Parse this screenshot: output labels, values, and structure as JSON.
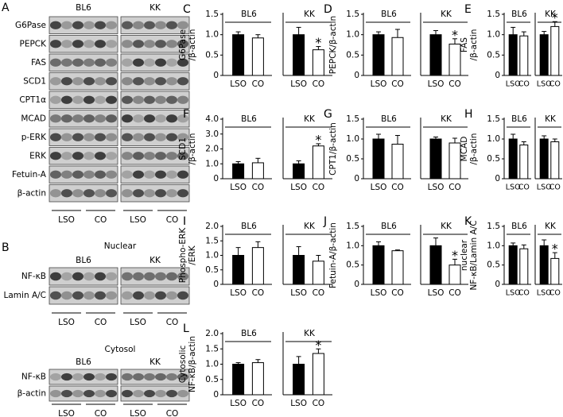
{
  "blots": {
    "panel_a": {
      "letter": "A",
      "groups": [
        "BL6",
        "KK"
      ],
      "rows": [
        "G6Pase",
        "PEPCK",
        "FAS",
        "SCD1",
        "CPT1α",
        "MCAD",
        "p-ERK",
        "ERK",
        "Fetuin-A",
        "β-actin"
      ],
      "lanes": [
        "LSO",
        "CO",
        "LSO",
        "CO"
      ]
    },
    "panel_b": {
      "letter": "B",
      "sections": [
        {
          "title": "Nuclear",
          "groups": [
            "BL6",
            "KK"
          ],
          "rows": [
            "NF-κB",
            "Lamin A/C"
          ],
          "lanes": [
            "LSO",
            "CO",
            "LSO",
            "CO"
          ]
        },
        {
          "title": "Cytosol",
          "groups": [
            "BL6",
            "KK"
          ],
          "rows": [
            "NF-κB",
            "β-actin"
          ],
          "lanes": [
            "LSO",
            "CO",
            "LSO",
            "CO"
          ]
        }
      ]
    }
  },
  "chart_data": [
    {
      "type": "bar",
      "panel": "C",
      "ylabel": [
        "G6Pase",
        "/β-actin"
      ],
      "groups": [
        "BL6",
        "KK"
      ],
      "categories": [
        "LSO",
        "CO",
        "LSO",
        "CO"
      ],
      "values": [
        1.0,
        0.92,
        1.0,
        0.63
      ],
      "errors": [
        0.07,
        0.08,
        0.18,
        0.08
      ],
      "colors": [
        "#000000",
        "#ffffff",
        "#000000",
        "#ffffff"
      ],
      "annotations": [
        {
          "index": 3,
          "text": "*"
        }
      ],
      "ylim": [
        0,
        1.5
      ],
      "yticks": [
        0,
        0.5,
        {
          "value": 1,
          "label": "1.0"
        },
        1.5
      ]
    },
    {
      "type": "bar",
      "panel": "D",
      "ylabel": [
        "PEPCK/β-actin"
      ],
      "groups": [
        "BL6",
        "KK"
      ],
      "categories": [
        "LSO",
        "CO",
        "LSO",
        "CO"
      ],
      "values": [
        1.0,
        0.93,
        1.0,
        0.77
      ],
      "errors": [
        0.07,
        0.2,
        0.1,
        0.13
      ],
      "colors": [
        "#000000",
        "#ffffff",
        "#000000",
        "#ffffff"
      ],
      "annotations": [
        {
          "index": 3,
          "text": "*"
        }
      ],
      "ylim": [
        0,
        1.5
      ],
      "yticks": [
        0,
        0.5,
        {
          "value": 1,
          "label": "1.0"
        },
        1.5
      ]
    },
    {
      "type": "bar",
      "panel": "E",
      "ylabel": [
        "FAS",
        "/β-actin"
      ],
      "groups": [
        "BL6",
        "KK"
      ],
      "categories": [
        "LSO",
        "CO",
        "LSO",
        "CO"
      ],
      "values": [
        1.0,
        0.97,
        1.0,
        1.2
      ],
      "errors": [
        0.18,
        0.1,
        0.08,
        0.12
      ],
      "colors": [
        "#000000",
        "#ffffff",
        "#000000",
        "#ffffff"
      ],
      "annotations": [
        {
          "index": 3,
          "text": "*"
        }
      ],
      "ylim": [
        0,
        1.5
      ],
      "yticks": [
        0,
        0.5,
        {
          "value": 1,
          "label": "1.0"
        },
        1.5
      ]
    },
    {
      "type": "bar",
      "panel": "F",
      "ylabel": [
        "SCD1",
        "/β-actin"
      ],
      "groups": [
        "BL6",
        "KK"
      ],
      "categories": [
        "LSO",
        "CO",
        "LSO",
        "CO"
      ],
      "values": [
        1.0,
        1.07,
        1.0,
        2.2
      ],
      "errors": [
        0.15,
        0.3,
        0.2,
        0.15
      ],
      "colors": [
        "#000000",
        "#ffffff",
        "#000000",
        "#ffffff"
      ],
      "annotations": [
        {
          "index": 3,
          "text": "*"
        }
      ],
      "ylim": [
        0,
        4
      ],
      "yticks": [
        0,
        {
          "value": 1,
          "label": "1.0"
        },
        {
          "value": 2,
          "label": "2.0"
        },
        {
          "value": 3,
          "label": "3.0"
        },
        {
          "value": 4,
          "label": "4.0"
        }
      ]
    },
    {
      "type": "bar",
      "panel": "G",
      "ylabel": [
        "CPT1/β-actin"
      ],
      "groups": [
        "BL6",
        "KK"
      ],
      "categories": [
        "LSO",
        "CO",
        "LSO",
        "CO"
      ],
      "values": [
        1.0,
        0.87,
        1.0,
        0.9
      ],
      "errors": [
        0.12,
        0.22,
        0.05,
        0.12
      ],
      "colors": [
        "#000000",
        "#ffffff",
        "#000000",
        "#ffffff"
      ],
      "annotations": [],
      "ylim": [
        0,
        1.5
      ],
      "yticks": [
        0,
        0.5,
        {
          "value": 1,
          "label": "1.0"
        },
        1.5
      ]
    },
    {
      "type": "bar",
      "panel": "H",
      "ylabel": [
        "MCAD",
        "/β-actin"
      ],
      "groups": [
        "BL6",
        "KK"
      ],
      "categories": [
        "LSO",
        "CO",
        "LSO",
        "CO"
      ],
      "values": [
        1.0,
        0.85,
        1.0,
        0.93
      ],
      "errors": [
        0.12,
        0.08,
        0.08,
        0.07
      ],
      "colors": [
        "#000000",
        "#ffffff",
        "#000000",
        "#ffffff"
      ],
      "annotations": [],
      "ylim": [
        0,
        1.5
      ],
      "yticks": [
        0,
        0.5,
        {
          "value": 1,
          "label": "1.0"
        },
        1.5
      ]
    },
    {
      "type": "bar",
      "panel": "I",
      "ylabel": [
        "Phospho-ERK",
        "/ERK"
      ],
      "groups": [
        "BL6",
        "KK"
      ],
      "categories": [
        "LSO",
        "CO",
        "LSO",
        "CO"
      ],
      "values": [
        1.0,
        1.27,
        1.0,
        0.8
      ],
      "errors": [
        0.27,
        0.2,
        0.3,
        0.2
      ],
      "colors": [
        "#000000",
        "#ffffff",
        "#000000",
        "#ffffff"
      ],
      "annotations": [],
      "ylim": [
        0,
        2
      ],
      "yticks": [
        0,
        0.5,
        {
          "value": 1,
          "label": "1.0"
        },
        1.5,
        {
          "value": 2,
          "label": "2.0"
        }
      ]
    },
    {
      "type": "bar",
      "panel": "J",
      "ylabel": [
        "Fetuin-A/β-actin"
      ],
      "groups": [
        "BL6",
        "KK"
      ],
      "categories": [
        "LSO",
        "CO",
        "LSO",
        "CO"
      ],
      "values": [
        1.0,
        0.87,
        1.0,
        0.5
      ],
      "errors": [
        0.1,
        0.02,
        0.2,
        0.15
      ],
      "colors": [
        "#000000",
        "#ffffff",
        "#000000",
        "#ffffff"
      ],
      "annotations": [
        {
          "index": 3,
          "text": "*"
        }
      ],
      "ylim": [
        0,
        1.5
      ],
      "yticks": [
        0,
        0.5,
        {
          "value": 1,
          "label": "1.0"
        },
        1.5
      ]
    },
    {
      "type": "bar",
      "panel": "K",
      "ylabel": [
        "nuclear",
        "NF-κB/Lamin A/C"
      ],
      "groups": [
        "BL6",
        "KK"
      ],
      "categories": [
        "LSO",
        "CO",
        "LSO",
        "CO"
      ],
      "values": [
        1.0,
        0.92,
        1.0,
        0.67
      ],
      "errors": [
        0.07,
        0.1,
        0.15,
        0.15
      ],
      "colors": [
        "#000000",
        "#ffffff",
        "#000000",
        "#ffffff"
      ],
      "annotations": [
        {
          "index": 3,
          "text": "*"
        }
      ],
      "ylim": [
        0,
        1.5
      ],
      "yticks": [
        0,
        0.5,
        {
          "value": 1,
          "label": "1.0"
        },
        1.5
      ]
    },
    {
      "type": "bar",
      "panel": "L",
      "ylabel": [
        "Cytosolic",
        "NF-κB/β-actin"
      ],
      "groups": [
        "BL6",
        "KK"
      ],
      "categories": [
        "LSO",
        "CO",
        "LSO",
        "CO"
      ],
      "values": [
        1.0,
        1.05,
        1.0,
        1.35
      ],
      "errors": [
        0.05,
        0.1,
        0.25,
        0.15
      ],
      "colors": [
        "#000000",
        "#ffffff",
        "#000000",
        "#ffffff"
      ],
      "annotations": [
        {
          "index": 3,
          "text": "*"
        }
      ],
      "ylim": [
        0,
        2
      ],
      "yticks": [
        0,
        0.5,
        {
          "value": 1,
          "label": "1.0"
        },
        1.5,
        {
          "value": 2,
          "label": "2.0"
        }
      ]
    }
  ]
}
